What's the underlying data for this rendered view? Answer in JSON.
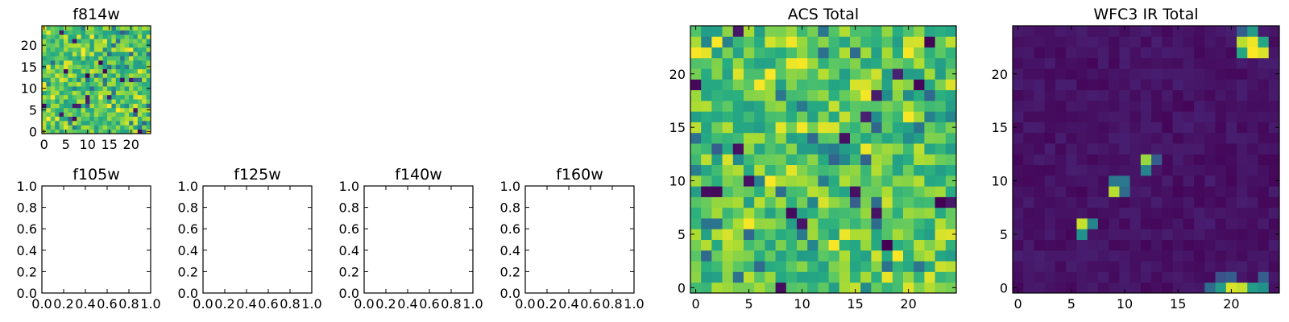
{
  "chart_data": [
    {
      "id": "f814w",
      "type": "heatmap",
      "title": "f814w",
      "grid_size": 25,
      "colormap": "viridis",
      "xlim": [
        -0.5,
        24.5
      ],
      "ylim": [
        -0.5,
        24.5
      ],
      "xticks": [
        0,
        5,
        10,
        15,
        20
      ],
      "yticks": [
        0,
        5,
        10,
        15,
        20
      ],
      "tick_labels_x": [
        "0",
        "5",
        "10",
        "15",
        "20"
      ],
      "tick_labels_y": [
        "0",
        "5",
        "10",
        "15",
        "20"
      ]
    },
    {
      "id": "f105w",
      "type": "heatmap",
      "title": "f105w",
      "empty": true,
      "xlim": [
        0,
        1
      ],
      "ylim": [
        0,
        1
      ],
      "xticks": [
        0,
        0.2,
        0.4,
        0.6,
        0.8,
        1.0
      ],
      "yticks": [
        0,
        0.2,
        0.4,
        0.6,
        0.8,
        1.0
      ],
      "tick_labels_x": [
        "0.0",
        "0.2",
        "0.4",
        "0.6",
        "0.8",
        "1.0"
      ],
      "tick_labels_y": [
        "0.0",
        "0.2",
        "0.4",
        "0.6",
        "0.8",
        "1.0"
      ]
    },
    {
      "id": "f125w",
      "type": "heatmap",
      "title": "f125w",
      "empty": true,
      "xlim": [
        0,
        1
      ],
      "ylim": [
        0,
        1
      ],
      "xticks": [
        0,
        0.2,
        0.4,
        0.6,
        0.8,
        1.0
      ],
      "yticks": [
        0,
        0.2,
        0.4,
        0.6,
        0.8,
        1.0
      ],
      "tick_labels_x": [
        "0.0",
        "0.2",
        "0.4",
        "0.6",
        "0.8",
        "1.0"
      ],
      "tick_labels_y": [
        "0.0",
        "0.2",
        "0.4",
        "0.6",
        "0.8",
        "1.0"
      ]
    },
    {
      "id": "f140w",
      "type": "heatmap",
      "title": "f140w",
      "empty": true,
      "xlim": [
        0,
        1
      ],
      "ylim": [
        0,
        1
      ],
      "xticks": [
        0,
        0.2,
        0.4,
        0.6,
        0.8,
        1.0
      ],
      "yticks": [
        0,
        0.2,
        0.4,
        0.6,
        0.8,
        1.0
      ],
      "tick_labels_x": [
        "0.0",
        "0.2",
        "0.4",
        "0.6",
        "0.8",
        "1.0"
      ],
      "tick_labels_y": [
        "0.0",
        "0.2",
        "0.4",
        "0.6",
        "0.8",
        "1.0"
      ]
    },
    {
      "id": "f160w",
      "type": "heatmap",
      "title": "f160w",
      "empty": true,
      "xlim": [
        0,
        1
      ],
      "ylim": [
        0,
        1
      ],
      "xticks": [
        0,
        0.2,
        0.4,
        0.6,
        0.8,
        1.0
      ],
      "yticks": [
        0,
        0.2,
        0.4,
        0.6,
        0.8,
        1.0
      ],
      "tick_labels_x": [
        "0.0",
        "0.2",
        "0.4",
        "0.6",
        "0.8",
        "1.0"
      ],
      "tick_labels_y": [
        "0.0",
        "0.2",
        "0.4",
        "0.6",
        "0.8",
        "1.0"
      ]
    },
    {
      "id": "acs_total",
      "type": "heatmap",
      "title": "ACS Total",
      "grid_size": 25,
      "colormap": "viridis",
      "xlim": [
        -0.5,
        24.5
      ],
      "ylim": [
        -0.5,
        24.5
      ],
      "xticks": [
        0,
        5,
        10,
        15,
        20
      ],
      "yticks": [
        0,
        5,
        10,
        15,
        20
      ],
      "tick_labels_x": [
        "0",
        "5",
        "10",
        "15",
        "20"
      ],
      "tick_labels_y": [
        "0",
        "5",
        "10",
        "15",
        "20"
      ]
    },
    {
      "id": "wfc3_ir_total",
      "type": "heatmap",
      "title": "WFC3 IR Total",
      "grid_size": 25,
      "colormap": "viridis",
      "xlim": [
        -0.5,
        24.5
      ],
      "ylim": [
        -0.5,
        24.5
      ],
      "xticks": [
        0,
        5,
        10,
        15,
        20
      ],
      "yticks": [
        0,
        5,
        10,
        15,
        20
      ],
      "tick_labels_x": [
        "0",
        "5",
        "10",
        "15",
        "20"
      ],
      "tick_labels_y": [
        "0",
        "5",
        "10",
        "15",
        "20"
      ],
      "bright_cells": [
        {
          "x": 6,
          "y": 6,
          "level": 0.92
        },
        {
          "x": 7,
          "y": 6,
          "level": 0.45
        },
        {
          "x": 6,
          "y": 5,
          "level": 0.5
        },
        {
          "x": 9,
          "y": 9,
          "level": 0.9
        },
        {
          "x": 9,
          "y": 10,
          "level": 0.4
        },
        {
          "x": 10,
          "y": 10,
          "level": 0.4
        },
        {
          "x": 10,
          "y": 9,
          "level": 0.35
        },
        {
          "x": 12,
          "y": 12,
          "level": 0.85
        },
        {
          "x": 12,
          "y": 11,
          "level": 0.45
        },
        {
          "x": 13,
          "y": 12,
          "level": 0.3
        },
        {
          "x": 21,
          "y": 24,
          "level": 0.3
        },
        {
          "x": 22,
          "y": 24,
          "level": 0.55
        },
        {
          "x": 21,
          "y": 23,
          "level": 0.9
        },
        {
          "x": 22,
          "y": 23,
          "level": 0.98
        },
        {
          "x": 23,
          "y": 23,
          "level": 0.6
        },
        {
          "x": 21,
          "y": 22,
          "level": 0.6
        },
        {
          "x": 22,
          "y": 22,
          "level": 1.0
        },
        {
          "x": 23,
          "y": 22,
          "level": 0.95
        },
        {
          "x": 19,
          "y": 1,
          "level": 0.25
        },
        {
          "x": 20,
          "y": 1,
          "level": 0.3
        },
        {
          "x": 23,
          "y": 1,
          "level": 0.3
        },
        {
          "x": 18,
          "y": 0,
          "level": 0.35
        },
        {
          "x": 19,
          "y": 0,
          "level": 0.55
        },
        {
          "x": 20,
          "y": 0,
          "level": 0.95
        },
        {
          "x": 21,
          "y": 0,
          "level": 0.92
        },
        {
          "x": 22,
          "y": 0,
          "level": 0.55
        },
        {
          "x": 23,
          "y": 0,
          "level": 0.5
        }
      ]
    }
  ]
}
